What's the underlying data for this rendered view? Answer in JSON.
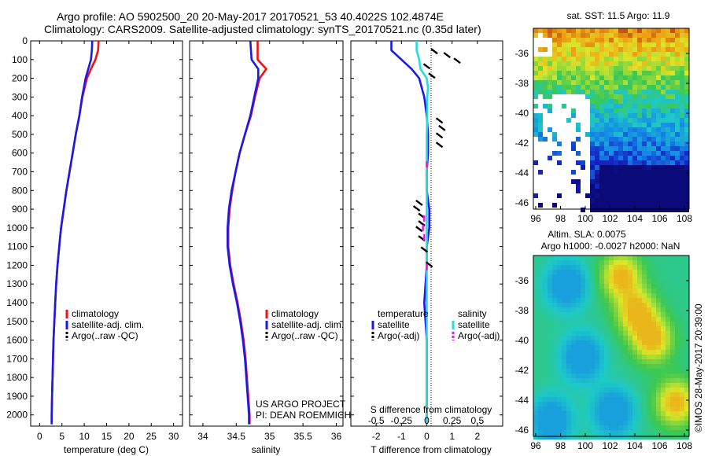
{
  "header": {
    "line1": "Argo profile: AO 5902500_20 20-May-2017 20170521_53 40.4022S 102.4874E",
    "line2": "Climatology: CARS2009. Satellite-adjusted climatology: synTS_20170521.nc (0.35d later)"
  },
  "depth_ticks": [
    "0",
    "100",
    "200",
    "300",
    "400",
    "500",
    "600",
    "700",
    "800",
    "900",
    "1000",
    "1100",
    "1200",
    "1300",
    "1400",
    "1500",
    "1600",
    "1700",
    "1800",
    "1900",
    "2000"
  ],
  "chart_data": [
    {
      "type": "line",
      "name": "temperature",
      "xlabel": "temperature (deg C)",
      "xlim": [
        -2,
        32
      ],
      "ylim": [
        0,
        2060
      ],
      "xticks": [
        "0",
        "5",
        "10",
        "15",
        "20",
        "25",
        "30"
      ],
      "xtick_values": [
        0,
        5,
        10,
        15,
        20,
        25,
        30
      ],
      "legend": [
        "climatology",
        "satellite-adj. clim.",
        "Argo(..raw -QC)"
      ],
      "legend_colors": [
        "#ee1111",
        "#1a1ae8",
        "#000000"
      ],
      "series": [
        {
          "name": "climatology",
          "color": "#ee1111",
          "depth": [
            0,
            50,
            100,
            150,
            200,
            300,
            400,
            500,
            600,
            700,
            800,
            900,
            1000,
            1100,
            1200,
            1300,
            1400,
            1500,
            1600,
            1700,
            1800,
            1900,
            2000,
            2050
          ],
          "values": [
            13.2,
            13.1,
            12.5,
            11.5,
            10.6,
            9.6,
            8.9,
            8.1,
            7.4,
            6.7,
            6.0,
            5.4,
            4.8,
            4.4,
            4.0,
            3.7,
            3.5,
            3.3,
            3.1,
            3.0,
            2.9,
            2.8,
            2.7,
            2.7
          ]
        },
        {
          "name": "satellite-adj. clim.",
          "color": "#1a1ae8",
          "depth": [
            0,
            50,
            100,
            150,
            200,
            300,
            400,
            500,
            600,
            700,
            800,
            900,
            1000,
            1100,
            1200,
            1300,
            1400,
            1500,
            1600,
            1700,
            1800,
            1900,
            2000,
            2050
          ],
          "values": [
            11.8,
            11.7,
            11.5,
            10.9,
            10.3,
            9.5,
            8.9,
            8.1,
            7.4,
            6.7,
            6.0,
            5.4,
            4.8,
            4.4,
            4.0,
            3.7,
            3.5,
            3.3,
            3.1,
            3.0,
            2.9,
            2.8,
            2.7,
            2.7
          ]
        }
      ]
    },
    {
      "type": "line",
      "name": "salinity",
      "xlabel": "salinity",
      "xlim": [
        33.8,
        36.1
      ],
      "ylim": [
        0,
        2060
      ],
      "xticks": [
        "34",
        "34.5",
        "35",
        "35.5",
        "36"
      ],
      "xtick_values": [
        34,
        34.5,
        35,
        35.5,
        36
      ],
      "legend": [
        "climatology",
        "satellite-adj. clim.",
        "Argo(..raw -QC)"
      ],
      "legend_colors": [
        "#ee1111",
        "#1a1ae8",
        "#000000"
      ],
      "annotation": [
        "US ARGO PROJECT",
        "PI: DEAN ROEMMICH"
      ],
      "series": [
        {
          "name": "climatology",
          "color": "#ee1111",
          "depth": [
            0,
            50,
            100,
            150,
            200,
            300,
            400,
            500,
            600,
            700,
            800,
            900,
            1000,
            1100,
            1200,
            1300,
            1400,
            1500,
            1600,
            1700,
            1800,
            1900,
            2000,
            2050
          ],
          "values": [
            34.82,
            34.82,
            34.82,
            34.95,
            34.85,
            34.78,
            34.72,
            34.63,
            34.55,
            34.49,
            34.44,
            34.4,
            34.38,
            34.38,
            34.41,
            34.46,
            34.52,
            34.57,
            34.61,
            34.64,
            34.66,
            34.68,
            34.7,
            34.7
          ]
        },
        {
          "name": "satellite-adj. clim.",
          "color": "#1a1ae8",
          "depth": [
            0,
            50,
            100,
            150,
            200,
            300,
            400,
            500,
            600,
            700,
            800,
            900,
            1000,
            1100,
            1200,
            1300,
            1400,
            1500,
            1600,
            1700,
            1800,
            1900,
            2000,
            2050
          ],
          "values": [
            34.71,
            34.72,
            34.73,
            34.83,
            34.83,
            34.77,
            34.71,
            34.63,
            34.55,
            34.49,
            34.43,
            34.39,
            34.37,
            34.37,
            34.4,
            34.45,
            34.51,
            34.56,
            34.6,
            34.63,
            34.65,
            34.67,
            34.69,
            34.69
          ]
        }
      ]
    },
    {
      "type": "line",
      "name": "differences",
      "xlabel": "T difference from climatology",
      "xlabel2": "S difference from climatology",
      "xlim": [
        -3,
        3
      ],
      "ylim": [
        0,
        2060
      ],
      "xticks": [
        "-2",
        "-1",
        "0",
        "1",
        "2"
      ],
      "xtick_values": [
        -2,
        -1,
        0,
        1,
        2
      ],
      "xticks_top": [
        "-0.5",
        "-0.25",
        "0",
        "0.25",
        "0.5"
      ],
      "xtick_top_values": [
        -2,
        -1,
        0,
        1,
        2
      ],
      "legend_headers": [
        "temperature",
        "salinity"
      ],
      "legend": [
        "satellite",
        "Argo(-adj)",
        "satellite",
        "Argo(-adj)"
      ],
      "legend_colors": [
        "#1a1ae8",
        "#000000",
        "#22dddd",
        "#ee11ee"
      ],
      "series": [
        {
          "name": "T satellite",
          "color": "#1a1ae8",
          "depth": [
            0,
            50,
            100,
            150,
            200,
            300,
            400,
            500,
            600,
            700,
            800,
            900,
            1000,
            1100,
            1200,
            1300,
            1400,
            1500,
            1600,
            1700,
            1800,
            1900,
            2000,
            2050
          ],
          "values": [
            -1.4,
            -1.4,
            -1.0,
            -0.6,
            -0.3,
            -0.1,
            0,
            0.05,
            0.05,
            0,
            0,
            0.1,
            0.1,
            0,
            0,
            -0.05,
            -0.1,
            -0.05,
            0,
            0,
            0,
            0,
            0,
            0
          ]
        },
        {
          "name": "S satellite",
          "color": "#22dddd",
          "depth": [
            0,
            50,
            100,
            150,
            200,
            250,
            300,
            400,
            500,
            600,
            700,
            800,
            1000,
            1200,
            1400,
            1600,
            1800,
            2000,
            2050
          ],
          "values": [
            -0.4,
            -0.4,
            -0.3,
            -0.25,
            0,
            0.05,
            0.02,
            0.02,
            0,
            0,
            0,
            0,
            0,
            0,
            0,
            0,
            0,
            0,
            0
          ]
        }
      ]
    }
  ],
  "maps": [
    {
      "title": "sat. SST: 11.5 Argo: 11.9",
      "yticks": [
        "-36",
        "-38",
        "-40",
        "-42",
        "-44",
        "-46"
      ],
      "xticks": [
        "96",
        "98",
        "100",
        "102",
        "104",
        "106",
        "108"
      ]
    },
    {
      "title1": "Altim. SLA: 0.0075",
      "title2": "Argo h1000: -0.0027 h2000: NaN",
      "yticks": [
        "-36",
        "-38",
        "-40",
        "-42",
        "-44",
        "-46"
      ],
      "xticks": [
        "96",
        "98",
        "100",
        "102",
        "104",
        "106",
        "108"
      ]
    }
  ],
  "credit": "©IMOS 28-May-2017 20:39:00"
}
